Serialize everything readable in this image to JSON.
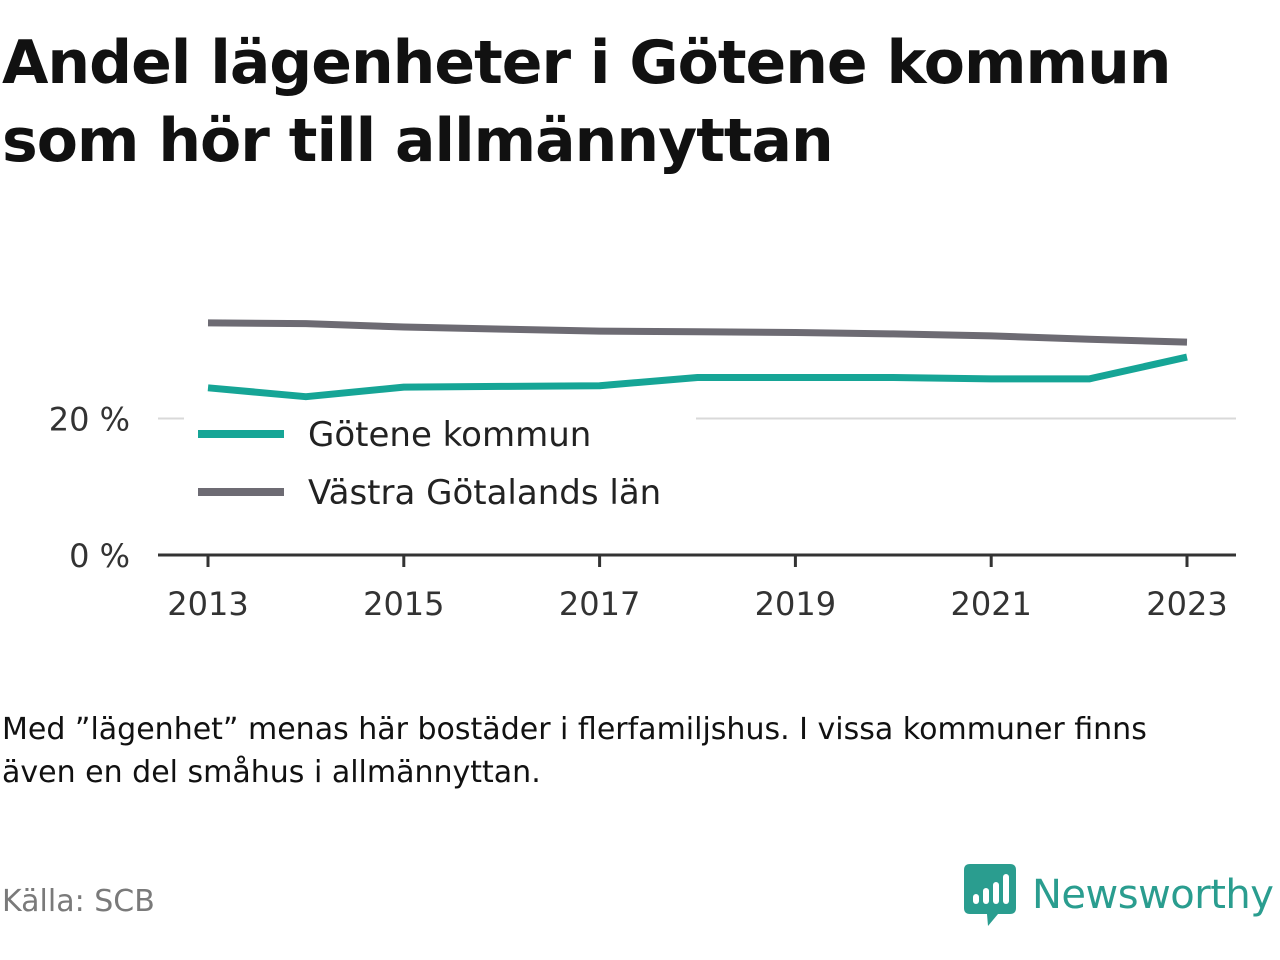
{
  "header": {
    "title_line1": "Andel lägenheter i Götene kommun",
    "title_line2": "som hör till allmännyttan"
  },
  "footer": {
    "note_line1": "Med ”lägenhet” menas här bostäder i flerfamiljshus. I vissa kommuner finns",
    "note_line2": "även en del småhus i allmännyttan.",
    "source": "Källa: SCB",
    "brand": "Newsworthy"
  },
  "colors": {
    "gotene": "#16a596",
    "vastra": "#6d6b73",
    "axis": "#333333",
    "grid": "#d9d9d9",
    "brand": "#2a9d8f"
  },
  "icons": [
    "newsworthy-logo-icon"
  ],
  "chart_data": {
    "type": "line",
    "x": [
      2013,
      2014,
      2015,
      2016,
      2017,
      2018,
      2019,
      2020,
      2021,
      2022,
      2023
    ],
    "series": [
      {
        "name": "Götene kommun",
        "color": "#16a596",
        "values": [
          24.5,
          23.2,
          24.6,
          24.7,
          24.8,
          26.0,
          26.0,
          26.0,
          25.8,
          25.8,
          29.0
        ]
      },
      {
        "name": "Västra Götalands län",
        "color": "#6d6b73",
        "values": [
          34.0,
          33.9,
          33.4,
          33.1,
          32.8,
          32.7,
          32.6,
          32.4,
          32.1,
          31.6,
          31.2
        ]
      }
    ],
    "xticks": [
      2013,
      2015,
      2017,
      2019,
      2021,
      2023
    ],
    "xtick_labels": [
      "2013",
      "2015",
      "2017",
      "2019",
      "2021",
      "2023"
    ],
    "yticks": [
      0,
      20
    ],
    "ytick_labels": [
      "0 %",
      "20 %"
    ],
    "ylim": [
      0,
      40
    ],
    "xlim": [
      2013,
      2023
    ],
    "grid": "horizontal",
    "legend_position": "bottom-left",
    "xlabel": "",
    "ylabel": ""
  }
}
